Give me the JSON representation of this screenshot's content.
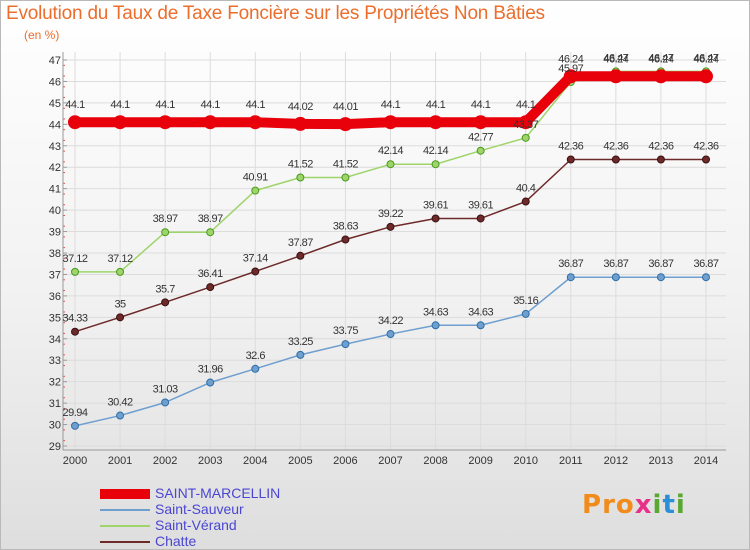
{
  "chart_data": {
    "type": "line",
    "title": "Evolution du Taux de Taxe Foncière sur les Propriétés Non Bâties",
    "unit_label": "(en %)",
    "x": [
      "2000",
      "2001",
      "2002",
      "2003",
      "2004",
      "2005",
      "2006",
      "2007",
      "2008",
      "2009",
      "2010",
      "2011",
      "2012",
      "2013",
      "2014"
    ],
    "ylim": [
      29,
      47
    ],
    "yticks": [
      "29",
      "30",
      "31",
      "32",
      "33",
      "34",
      "35",
      "36",
      "37",
      "38",
      "39",
      "40",
      "41",
      "42",
      "43",
      "44",
      "45",
      "46",
      "47"
    ],
    "grid": true,
    "series": [
      {
        "name": "SAINT-MARCELLIN",
        "color": "#e8000b",
        "values": [
          44.1,
          44.1,
          44.1,
          44.1,
          44.1,
          44.02,
          44.01,
          44.1,
          44.1,
          44.1,
          44.1,
          46.24,
          46.24,
          46.24,
          46.24
        ],
        "labels": [
          "44.1",
          "44.1",
          "44.1",
          "44.1",
          "44.1",
          "44.02",
          "44.01",
          "44.1",
          "44.1",
          "44.1",
          "44.1",
          "46.24",
          "46.24",
          "46.24",
          "46.24"
        ]
      },
      {
        "name": "Saint-Sauveur",
        "color": "#6f9fcf",
        "values": [
          29.94,
          30.42,
          31.03,
          31.96,
          32.6,
          33.25,
          33.75,
          34.22,
          34.63,
          34.63,
          35.16,
          36.87,
          36.87,
          36.87,
          36.87
        ],
        "labels": [
          "29.94",
          "30.42",
          "31.03",
          "31.96",
          "32.6",
          "33.25",
          "33.75",
          "34.22",
          "34.63",
          "34.63",
          "35.16",
          "36.87",
          "36.87",
          "36.87",
          "36.87"
        ]
      },
      {
        "name": "Saint-Vérand",
        "color": "#9ed46a",
        "values": [
          37.12,
          37.12,
          38.97,
          38.97,
          40.91,
          41.52,
          41.52,
          42.14,
          42.14,
          42.77,
          43.37,
          45.97,
          46.47,
          46.47,
          46.47
        ],
        "labels": [
          "37.12",
          "37.12",
          "38.97",
          "38.97",
          "40.91",
          "41.52",
          "41.52",
          "42.14",
          "42.14",
          "42.77",
          "43.37",
          "45.97",
          "46.47",
          "46.47",
          "46.47"
        ]
      },
      {
        "name": "Chatte",
        "color": "#6e2a2a",
        "values": [
          34.33,
          35,
          35.7,
          36.41,
          37.14,
          37.87,
          38.63,
          39.22,
          39.61,
          39.61,
          40.4,
          42.36,
          42.36,
          42.36,
          42.36
        ],
        "labels": [
          "34.33",
          "35",
          "35.7",
          "36.41",
          "37.14",
          "37.87",
          "38.63",
          "39.22",
          "39.61",
          "39.61",
          "40.4",
          "42.36",
          "42.36",
          "42.36",
          "42.36"
        ]
      }
    ],
    "legend": {
      "position": "bottom-left"
    }
  },
  "logo": {
    "text": "Proxiti",
    "colors": [
      "#f08b1c",
      "#2b8fd6",
      "#5aa832",
      "#e8308a"
    ]
  }
}
